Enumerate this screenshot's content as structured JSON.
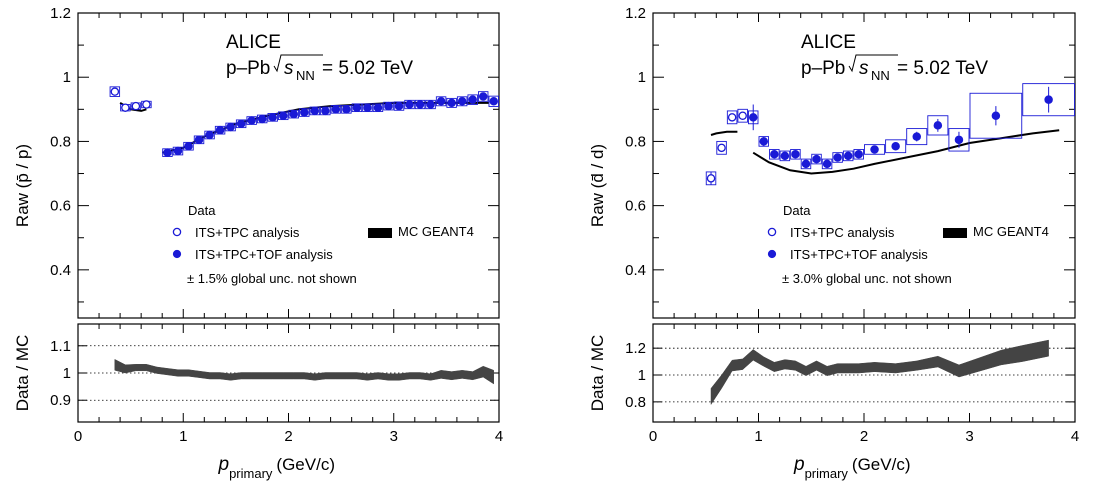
{
  "colors": {
    "data": "#1a1ad6",
    "mc": "#000000",
    "band": "#444444"
  },
  "shared": {
    "xlabel_main": "p",
    "xlabel_sub": "primary",
    "xlabel_unit": "(GeV/c)",
    "ratio_ylabel": "Data / MC",
    "experiment": "ALICE",
    "system": "p–Pb",
    "energy_value": "= 5.02 TeV",
    "energy_symbol": "s",
    "energy_sub": "NN"
  },
  "chart_data": [
    {
      "type": "scatter",
      "id": "proton",
      "ylabel": "Raw (p̄ / p)",
      "xlim": [
        0,
        4
      ],
      "ylim": [
        0.25,
        1.2
      ],
      "yticks": [
        "0.4",
        "0.6",
        "0.8",
        "1",
        "1.2"
      ],
      "xticks": [
        "0",
        "1",
        "2",
        "3",
        "4"
      ],
      "legend": {
        "title": "Data",
        "its_tpc": "ITS+TPC analysis",
        "its_tpc_tof": "ITS+TPC+TOF analysis",
        "mc": "MC GEANT4",
        "note": "± 1.5% global unc. not shown"
      },
      "series": [
        {
          "name": "ITS+TPC analysis",
          "marker": "open-circle",
          "x": [
            0.35,
            0.45,
            0.55,
            0.65
          ],
          "y": [
            0.955,
            0.905,
            0.91,
            0.915
          ],
          "err": [
            0.005,
            0.004,
            0.004,
            0.004
          ],
          "sys": [
            0.015,
            0.01,
            0.01,
            0.01
          ]
        },
        {
          "name": "ITS+TPC+TOF analysis",
          "marker": "filled-circle",
          "x": [
            0.85,
            0.95,
            1.05,
            1.15,
            1.25,
            1.35,
            1.45,
            1.55,
            1.65,
            1.75,
            1.85,
            1.95,
            2.05,
            2.15,
            2.25,
            2.35,
            2.45,
            2.55,
            2.65,
            2.75,
            2.85,
            2.95,
            3.05,
            3.15,
            3.25,
            3.35,
            3.45,
            3.55,
            3.65,
            3.75,
            3.85,
            3.95
          ],
          "y": [
            0.765,
            0.77,
            0.785,
            0.805,
            0.82,
            0.835,
            0.845,
            0.855,
            0.865,
            0.87,
            0.875,
            0.88,
            0.885,
            0.89,
            0.895,
            0.895,
            0.9,
            0.9,
            0.905,
            0.905,
            0.905,
            0.91,
            0.91,
            0.915,
            0.915,
            0.915,
            0.925,
            0.92,
            0.925,
            0.93,
            0.94,
            0.925
          ],
          "err": [
            0.004,
            0.004,
            0.004,
            0.004,
            0.004,
            0.004,
            0.004,
            0.004,
            0.004,
            0.004,
            0.004,
            0.004,
            0.004,
            0.004,
            0.004,
            0.004,
            0.004,
            0.004,
            0.004,
            0.004,
            0.004,
            0.004,
            0.005,
            0.005,
            0.005,
            0.005,
            0.005,
            0.006,
            0.006,
            0.006,
            0.007,
            0.008
          ],
          "sys": [
            0.012,
            0.012,
            0.012,
            0.012,
            0.012,
            0.012,
            0.012,
            0.012,
            0.012,
            0.012,
            0.012,
            0.012,
            0.012,
            0.012,
            0.012,
            0.012,
            0.012,
            0.012,
            0.012,
            0.012,
            0.012,
            0.012,
            0.013,
            0.013,
            0.013,
            0.013,
            0.014,
            0.014,
            0.014,
            0.015,
            0.015,
            0.016
          ]
        }
      ],
      "mc_segments": [
        {
          "x": [
            0.4,
            0.5,
            0.6,
            0.65
          ],
          "y": [
            0.92,
            0.9,
            0.895,
            0.9
          ]
        },
        {
          "x": [
            0.8,
            1.0,
            1.2,
            1.5,
            1.8,
            2.1,
            2.4,
            2.7,
            3.0,
            3.3,
            3.6,
            3.9
          ],
          "y": [
            0.765,
            0.78,
            0.815,
            0.855,
            0.88,
            0.9,
            0.91,
            0.915,
            0.92,
            0.92,
            0.92,
            0.92
          ]
        }
      ],
      "ratio": {
        "ylim": [
          0.82,
          1.18
        ],
        "yticks": [
          "0.9",
          "1",
          "1.1"
        ],
        "ytick_values": [
          0.9,
          1.0,
          1.1
        ],
        "x": [
          0.35,
          0.45,
          0.55,
          0.65,
          0.75,
          0.85,
          0.95,
          1.05,
          1.15,
          1.25,
          1.35,
          1.45,
          1.55,
          1.65,
          1.75,
          1.85,
          1.95,
          2.05,
          2.15,
          2.25,
          2.35,
          2.45,
          2.55,
          2.65,
          2.75,
          2.85,
          2.95,
          3.05,
          3.15,
          3.25,
          3.35,
          3.45,
          3.55,
          3.65,
          3.75,
          3.85,
          3.95
        ],
        "y": [
          1.03,
          1.015,
          1.02,
          1.02,
          1.01,
          1.005,
          1.0,
          1.0,
          0.995,
          0.99,
          0.99,
          0.985,
          0.99,
          0.99,
          0.99,
          0.99,
          0.99,
          0.99,
          0.99,
          0.985,
          0.99,
          0.99,
          0.99,
          0.99,
          0.985,
          0.99,
          0.985,
          0.985,
          0.99,
          0.99,
          0.985,
          0.995,
          0.99,
          0.995,
          0.99,
          1.005,
          0.985
        ],
        "w": [
          0.02,
          0.015,
          0.012,
          0.012,
          0.012,
          0.012,
          0.012,
          0.012,
          0.012,
          0.012,
          0.012,
          0.012,
          0.012,
          0.012,
          0.012,
          0.012,
          0.012,
          0.012,
          0.012,
          0.012,
          0.012,
          0.012,
          0.012,
          0.012,
          0.012,
          0.012,
          0.012,
          0.012,
          0.012,
          0.012,
          0.012,
          0.015,
          0.015,
          0.015,
          0.015,
          0.02,
          0.025
        ]
      }
    },
    {
      "type": "scatter",
      "id": "deuteron",
      "ylabel": "Raw (d̄ / d)",
      "xlim": [
        0,
        4
      ],
      "ylim": [
        0.25,
        1.2
      ],
      "yticks": [
        "0.4",
        "0.6",
        "0.8",
        "1",
        "1.2"
      ],
      "xticks": [
        "0",
        "1",
        "2",
        "3",
        "4"
      ],
      "legend": {
        "title": "Data",
        "its_tpc": "ITS+TPC analysis",
        "its_tpc_tof": "ITS+TPC+TOF analysis",
        "mc": "MC GEANT4",
        "note": "± 3.0% global unc. not shown"
      },
      "series": [
        {
          "name": "ITS+TPC analysis",
          "marker": "open-circle",
          "x": [
            0.55,
            0.65,
            0.75,
            0.85
          ],
          "y": [
            0.685,
            0.78,
            0.875,
            0.88
          ],
          "err": [
            0.02,
            0.01,
            0.01,
            0.01
          ],
          "sys": [
            0.02,
            0.02,
            0.02,
            0.02
          ],
          "bw": [
            0.1,
            0.1,
            0.1,
            0.1
          ]
        },
        {
          "name": "ITS+TPC+TOF analysis",
          "marker": "filled-circle",
          "x": [
            0.95,
            1.05,
            1.15,
            1.25,
            1.35,
            1.45,
            1.55,
            1.65,
            1.75,
            1.85,
            1.95,
            2.1,
            2.3,
            2.5,
            2.7,
            2.9,
            3.25,
            3.75
          ],
          "y": [
            0.875,
            0.8,
            0.76,
            0.755,
            0.76,
            0.73,
            0.745,
            0.73,
            0.75,
            0.755,
            0.76,
            0.775,
            0.785,
            0.815,
            0.85,
            0.805,
            0.88,
            0.93
          ],
          "err": [
            0.04,
            0.015,
            0.01,
            0.01,
            0.01,
            0.01,
            0.01,
            0.01,
            0.01,
            0.01,
            0.01,
            0.01,
            0.012,
            0.015,
            0.02,
            0.025,
            0.03,
            0.04
          ],
          "sys": [
            0.02,
            0.015,
            0.015,
            0.015,
            0.015,
            0.015,
            0.015,
            0.015,
            0.015,
            0.015,
            0.015,
            0.015,
            0.02,
            0.025,
            0.03,
            0.035,
            0.07,
            0.05
          ],
          "bw": [
            0.1,
            0.1,
            0.1,
            0.1,
            0.1,
            0.1,
            0.1,
            0.1,
            0.1,
            0.1,
            0.1,
            0.2,
            0.2,
            0.2,
            0.2,
            0.2,
            0.5,
            0.5
          ]
        }
      ],
      "mc_segments": [
        {
          "x": [
            0.55,
            0.6,
            0.7,
            0.8
          ],
          "y": [
            0.82,
            0.825,
            0.83,
            0.83
          ]
        },
        {
          "x": [
            0.95,
            1.1,
            1.3,
            1.5,
            1.7,
            1.9,
            2.1,
            2.4,
            2.7,
            3.0,
            3.3,
            3.6,
            3.85
          ],
          "y": [
            0.765,
            0.735,
            0.71,
            0.7,
            0.705,
            0.715,
            0.73,
            0.75,
            0.77,
            0.795,
            0.81,
            0.825,
            0.835
          ]
        }
      ],
      "ratio": {
        "ylim": [
          0.65,
          1.38
        ],
        "yticks": [
          "0.8",
          "1",
          "1.2"
        ],
        "ytick_values": [
          0.8,
          1.0,
          1.2
        ],
        "x": [
          0.55,
          0.65,
          0.75,
          0.85,
          0.95,
          1.05,
          1.15,
          1.25,
          1.35,
          1.45,
          1.55,
          1.65,
          1.75,
          1.85,
          1.95,
          2.1,
          2.3,
          2.5,
          2.7,
          2.9,
          3.1,
          3.3,
          3.5,
          3.75
        ],
        "y": [
          0.84,
          0.95,
          1.07,
          1.08,
          1.15,
          1.1,
          1.06,
          1.08,
          1.07,
          1.03,
          1.07,
          1.03,
          1.05,
          1.05,
          1.05,
          1.06,
          1.05,
          1.07,
          1.1,
          1.03,
          1.08,
          1.13,
          1.16,
          1.2
        ],
        "w": [
          0.06,
          0.05,
          0.04,
          0.04,
          0.04,
          0.035,
          0.035,
          0.035,
          0.035,
          0.035,
          0.035,
          0.035,
          0.035,
          0.035,
          0.035,
          0.035,
          0.035,
          0.035,
          0.04,
          0.045,
          0.05,
          0.055,
          0.06,
          0.06
        ]
      }
    }
  ]
}
